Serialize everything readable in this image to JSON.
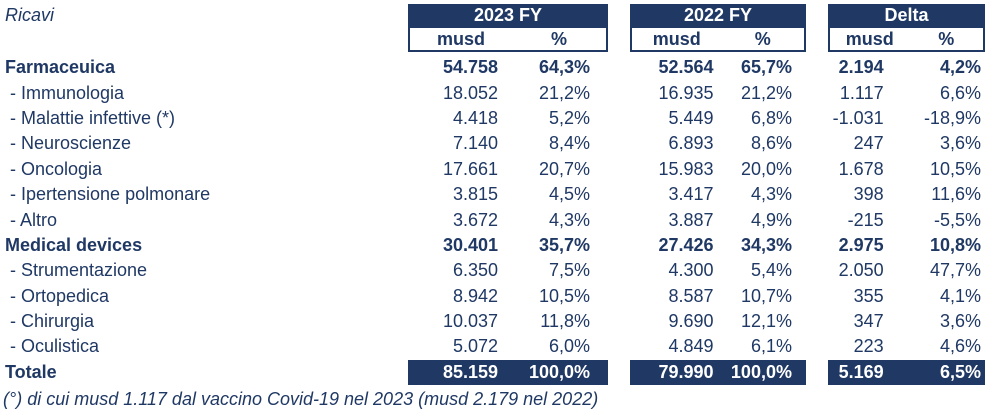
{
  "title": "Ricavi",
  "colors": {
    "navy": "#1F3864",
    "white": "#FFFFFF"
  },
  "header": {
    "groups": [
      {
        "label": "2023 FY",
        "sub_musd": "musd",
        "sub_pct": "%"
      },
      {
        "label": "2022 FY",
        "sub_musd": "musd",
        "sub_pct": "%"
      },
      {
        "label": "Delta",
        "sub_musd": "musd",
        "sub_pct": "%"
      }
    ]
  },
  "rows": [
    {
      "label": "Farmaceuica",
      "style": "section",
      "v": [
        "54.758",
        "64,3%",
        "52.564",
        "65,7%",
        "2.194",
        "4,2%"
      ]
    },
    {
      "label": "- Immunologia",
      "style": "item",
      "v": [
        "18.052",
        "21,2%",
        "16.935",
        "21,2%",
        "1.117",
        "6,6%"
      ]
    },
    {
      "label": "- Malattie infettive (*)",
      "style": "item",
      "v": [
        "4.418",
        "5,2%",
        "5.449",
        "6,8%",
        "-1.031",
        "-18,9%"
      ]
    },
    {
      "label": "- Neuroscienze",
      "style": "item",
      "v": [
        "7.140",
        "8,4%",
        "6.893",
        "8,6%",
        "247",
        "3,6%"
      ]
    },
    {
      "label": "- Oncologia",
      "style": "item",
      "v": [
        "17.661",
        "20,7%",
        "15.983",
        "20,0%",
        "1.678",
        "10,5%"
      ]
    },
    {
      "label": "- Ipertensione polmonare",
      "style": "item",
      "v": [
        "3.815",
        "4,5%",
        "3.417",
        "4,3%",
        "398",
        "11,6%"
      ]
    },
    {
      "label": "- Altro",
      "style": "item",
      "v": [
        "3.672",
        "4,3%",
        "3.887",
        "4,9%",
        "-215",
        "-5,5%"
      ]
    },
    {
      "label": "Medical devices",
      "style": "section",
      "v": [
        "30.401",
        "35,7%",
        "27.426",
        "34,3%",
        "2.975",
        "10,8%"
      ]
    },
    {
      "label": "- Strumentazione",
      "style": "item",
      "v": [
        "6.350",
        "7,5%",
        "4.300",
        "5,4%",
        "2.050",
        "47,7%"
      ]
    },
    {
      "label": "- Ortopedica",
      "style": "item",
      "v": [
        "8.942",
        "10,5%",
        "8.587",
        "10,7%",
        "355",
        "4,1%"
      ]
    },
    {
      "label": "- Chirurgia",
      "style": "item",
      "v": [
        "10.037",
        "11,8%",
        "9.690",
        "12,1%",
        "347",
        "3,6%"
      ]
    },
    {
      "label": "- Oculistica",
      "style": "item",
      "v": [
        "5.072",
        "6,0%",
        "4.849",
        "6,1%",
        "223",
        "4,6%"
      ]
    },
    {
      "label": "Totale",
      "style": "total",
      "v": [
        "85.159",
        "100,0%",
        "79.990",
        "100,0%",
        "5.169",
        "6,5%"
      ]
    }
  ],
  "footnote": "(°) di cui musd 1.117 dal vaccino Covid-19 nel 2023 (musd 2.179 nel 2022)"
}
